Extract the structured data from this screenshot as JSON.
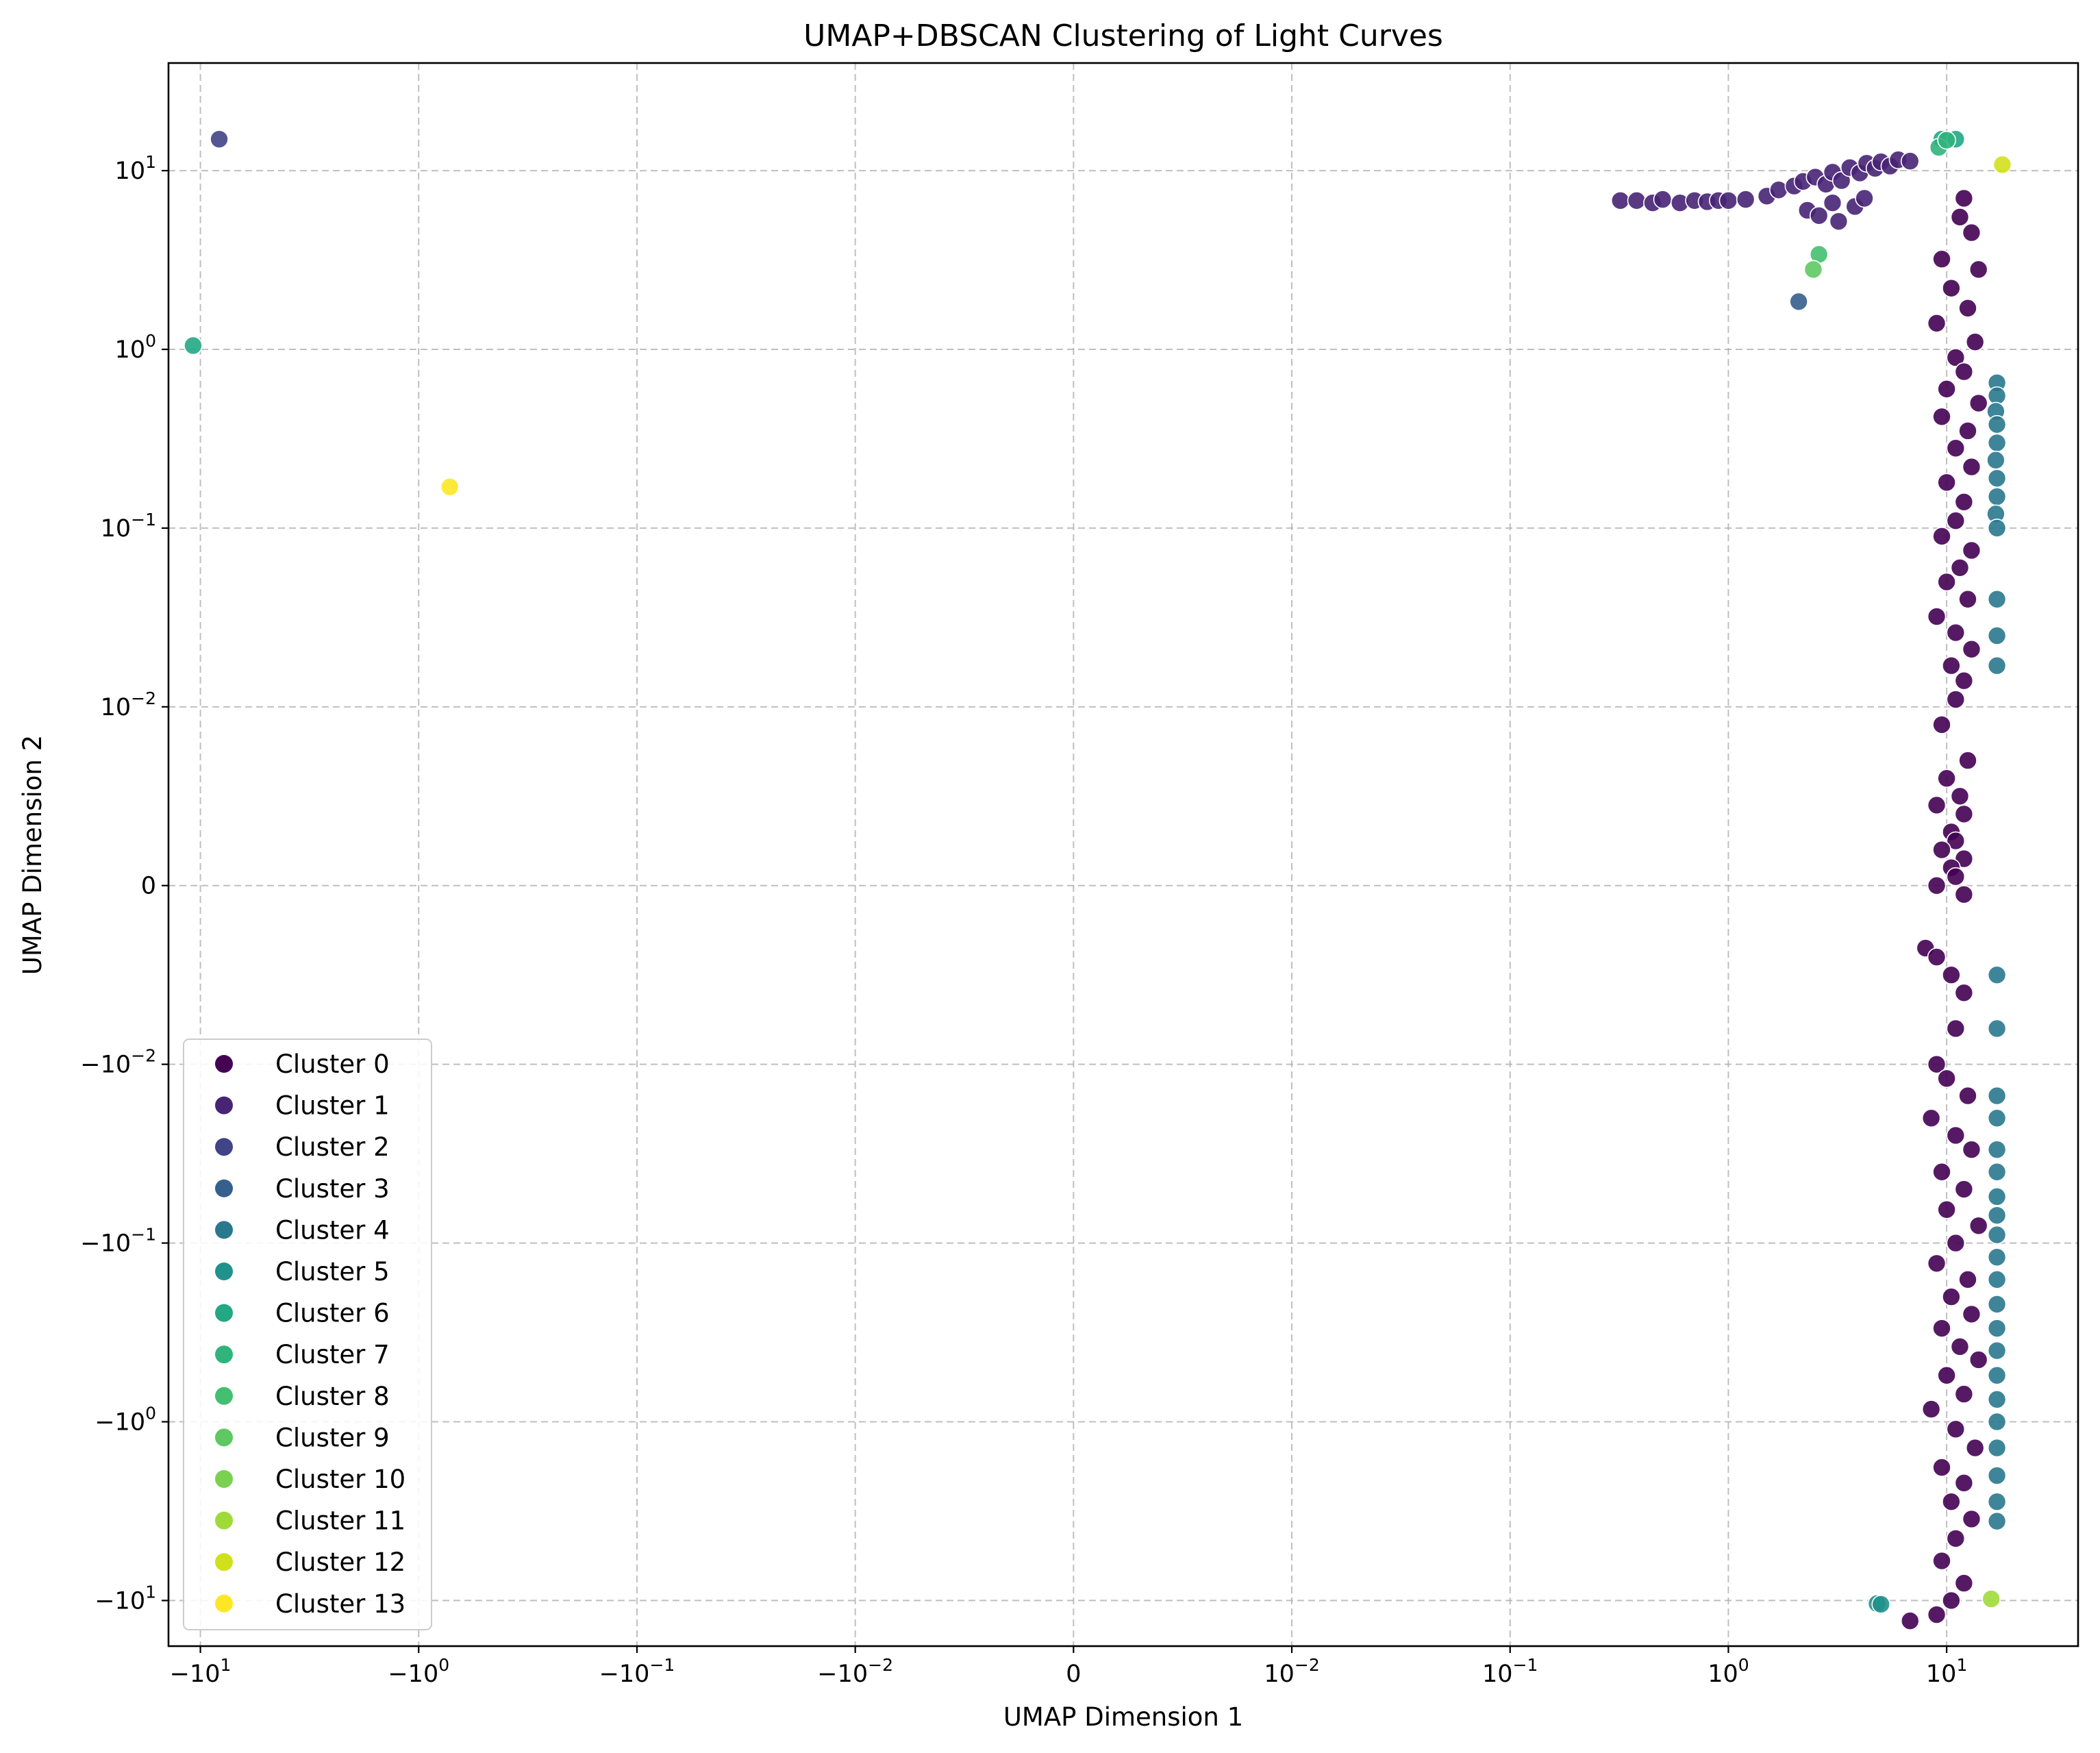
{
  "chart_data": {
    "type": "scatter",
    "title": "UMAP+DBSCAN Clustering of Light Curves",
    "xlabel": "UMAP Dimension 1",
    "ylabel": "UMAP Dimension 2",
    "xscale": "symlog",
    "yscale": "symlog",
    "linthresh": 0.01,
    "xlim": [
      -14,
      40
    ],
    "ylim": [
      -18,
      40
    ],
    "grid": true,
    "legend_position": "lower-left",
    "x_ticks": [
      {
        "value": -10,
        "base": "−10",
        "exp": "1"
      },
      {
        "value": -1,
        "base": "−10",
        "exp": "0"
      },
      {
        "value": -0.1,
        "base": "−10",
        "exp": "−1"
      },
      {
        "value": -0.01,
        "base": "−10",
        "exp": "−2"
      },
      {
        "value": 0,
        "base": "0",
        "exp": ""
      },
      {
        "value": 0.01,
        "base": "10",
        "exp": "−2"
      },
      {
        "value": 0.1,
        "base": "10",
        "exp": "−1"
      },
      {
        "value": 1,
        "base": "10",
        "exp": "0"
      },
      {
        "value": 10,
        "base": "10",
        "exp": "1"
      }
    ],
    "y_ticks": [
      {
        "value": 10,
        "base": "10",
        "exp": "1"
      },
      {
        "value": 1,
        "base": "10",
        "exp": "0"
      },
      {
        "value": 0.1,
        "base": "10",
        "exp": "−1"
      },
      {
        "value": 0.01,
        "base": "10",
        "exp": "−2"
      },
      {
        "value": 0,
        "base": "0",
        "exp": ""
      },
      {
        "value": -0.01,
        "base": "−10",
        "exp": "−2"
      },
      {
        "value": -0.1,
        "base": "−10",
        "exp": "−1"
      },
      {
        "value": -1,
        "base": "−10",
        "exp": "0"
      },
      {
        "value": -10,
        "base": "−10",
        "exp": "1"
      }
    ],
    "series": [
      {
        "name": "Cluster 0",
        "color": "#440154",
        "points": [
          [
            12,
            7
          ],
          [
            11.5,
            5.5
          ],
          [
            13,
            4.5
          ],
          [
            9.5,
            3.2
          ],
          [
            14,
            2.8
          ],
          [
            10.5,
            2.2
          ],
          [
            12.5,
            1.7
          ],
          [
            9,
            1.4
          ],
          [
            13.5,
            1.1
          ],
          [
            11,
            0.9
          ],
          [
            12,
            0.75
          ],
          [
            10,
            0.6
          ],
          [
            14,
            0.5
          ],
          [
            9.5,
            0.42
          ],
          [
            12.5,
            0.35
          ],
          [
            11,
            0.28
          ],
          [
            13,
            0.22
          ],
          [
            10,
            0.18
          ],
          [
            12,
            0.14
          ],
          [
            11,
            0.11
          ],
          [
            9.5,
            0.09
          ],
          [
            13,
            0.075
          ],
          [
            11.5,
            0.06
          ],
          [
            10,
            0.05
          ],
          [
            12.5,
            0.04
          ],
          [
            9,
            0.032
          ],
          [
            11,
            0.026
          ],
          [
            13,
            0.021
          ],
          [
            10.5,
            0.017
          ],
          [
            12,
            0.014
          ],
          [
            11,
            0.011
          ],
          [
            9.5,
            0.009
          ],
          [
            12.5,
            0.007
          ],
          [
            10,
            0.006
          ],
          [
            11.5,
            0.005
          ],
          [
            9,
            0.0045
          ],
          [
            12,
            0.004
          ],
          [
            10.5,
            0.003
          ],
          [
            11,
            0.0025
          ],
          [
            9.5,
            0.002
          ],
          [
            12,
            0.0015
          ],
          [
            10.5,
            0.001
          ],
          [
            11,
            0.0005
          ],
          [
            9,
            0
          ],
          [
            12,
            -0.0005
          ],
          [
            8,
            -0.0035
          ],
          [
            9,
            -0.004
          ],
          [
            10.5,
            -0.005
          ],
          [
            12,
            -0.006
          ],
          [
            11,
            -0.008
          ],
          [
            9,
            -0.01
          ],
          [
            10,
            -0.012
          ],
          [
            12.5,
            -0.015
          ],
          [
            8.5,
            -0.02
          ],
          [
            11,
            -0.025
          ],
          [
            13,
            -0.03
          ],
          [
            9.5,
            -0.04
          ],
          [
            12,
            -0.05
          ],
          [
            10,
            -0.065
          ],
          [
            14,
            -0.08
          ],
          [
            11,
            -0.1
          ],
          [
            9,
            -0.13
          ],
          [
            12.5,
            -0.16
          ],
          [
            10.5,
            -0.2
          ],
          [
            13,
            -0.25
          ],
          [
            9.5,
            -0.3
          ],
          [
            11.5,
            -0.38
          ],
          [
            14,
            -0.45
          ],
          [
            10,
            -0.55
          ],
          [
            12,
            -0.7
          ],
          [
            8.5,
            -0.85
          ],
          [
            11,
            -1.1
          ],
          [
            13.5,
            -1.4
          ],
          [
            9.5,
            -1.8
          ],
          [
            12,
            -2.2
          ],
          [
            10.5,
            -2.8
          ],
          [
            13,
            -3.5
          ],
          [
            11,
            -4.5
          ],
          [
            9.5,
            -6
          ],
          [
            12,
            -8
          ],
          [
            10.5,
            -10
          ],
          [
            9,
            -12
          ],
          [
            6.8,
            -13
          ]
        ]
      },
      {
        "name": "Cluster 1",
        "color": "#482475",
        "points": [
          [
            0.32,
            6.8
          ],
          [
            0.38,
            6.8
          ],
          [
            0.45,
            6.6
          ],
          [
            0.5,
            6.9
          ],
          [
            0.6,
            6.6
          ],
          [
            0.7,
            6.8
          ],
          [
            0.8,
            6.7
          ],
          [
            0.9,
            6.8
          ],
          [
            1,
            6.8
          ],
          [
            1.2,
            6.9
          ],
          [
            1.5,
            7.2
          ],
          [
            1.7,
            7.8
          ],
          [
            2,
            8.2
          ],
          [
            2.2,
            8.7
          ],
          [
            2.5,
            9.2
          ],
          [
            2.8,
            8.4
          ],
          [
            3,
            9.8
          ],
          [
            3.3,
            8.8
          ],
          [
            3.6,
            10.4
          ],
          [
            4,
            9.7
          ],
          [
            4.3,
            11
          ],
          [
            4.7,
            10.3
          ],
          [
            5,
            11.2
          ],
          [
            5.5,
            10.6
          ],
          [
            6,
            11.5
          ],
          [
            6.8,
            11.3
          ],
          [
            2.3,
            6
          ],
          [
            2.6,
            5.6
          ],
          [
            3.2,
            5.2
          ],
          [
            3.8,
            6.3
          ],
          [
            4.2,
            7
          ],
          [
            3,
            6.6
          ]
        ]
      },
      {
        "name": "Cluster 2",
        "color": "#414487",
        "points": [
          [
            -8.2,
            15
          ]
        ]
      },
      {
        "name": "Cluster 3",
        "color": "#355f8d",
        "points": [
          [
            2.1,
            1.85
          ]
        ]
      },
      {
        "name": "Cluster 4",
        "color": "#2a788e",
        "points": [
          [
            17,
            0.65
          ],
          [
            17,
            0.55
          ],
          [
            16.8,
            0.45
          ],
          [
            17,
            0.38
          ],
          [
            17,
            0.3
          ],
          [
            16.8,
            0.24
          ],
          [
            17,
            0.19
          ],
          [
            17,
            0.15
          ],
          [
            16.8,
            0.12
          ],
          [
            17,
            0.1
          ],
          [
            17,
            0.04
          ],
          [
            17,
            0.025
          ],
          [
            17,
            0.017
          ],
          [
            17,
            -0.005
          ],
          [
            17,
            -0.008
          ],
          [
            17,
            -0.015
          ],
          [
            17,
            -0.02
          ],
          [
            17,
            -0.03
          ],
          [
            17,
            -0.04
          ],
          [
            17,
            -0.055
          ],
          [
            17,
            -0.07
          ],
          [
            17,
            -0.09
          ],
          [
            17,
            -0.12
          ],
          [
            17,
            -0.16
          ],
          [
            17,
            -0.22
          ],
          [
            17,
            -0.3
          ],
          [
            17,
            -0.4
          ],
          [
            17,
            -0.55
          ],
          [
            17,
            -0.75
          ],
          [
            17,
            -1
          ],
          [
            17,
            -1.4
          ],
          [
            17,
            -2
          ],
          [
            17,
            -2.8
          ],
          [
            17,
            -3.6
          ]
        ]
      },
      {
        "name": "Cluster 5",
        "color": "#21918c",
        "points": [
          [
            4.8,
            -10.4
          ],
          [
            5,
            -10.5
          ]
        ]
      },
      {
        "name": "Cluster 6",
        "color": "#22a884",
        "points": [
          [
            -10.8,
            1.05
          ],
          [
            9.5,
            15
          ],
          [
            11,
            15
          ]
        ]
      },
      {
        "name": "Cluster 7",
        "color": "#2fb47c",
        "points": [
          [
            9.2,
            13.5
          ],
          [
            10,
            14.8
          ]
        ]
      },
      {
        "name": "Cluster 8",
        "color": "#44bf70",
        "points": [
          [
            2.6,
            3.4
          ]
        ]
      },
      {
        "name": "Cluster 9",
        "color": "#5ec962",
        "points": [
          [
            2.45,
            2.8
          ]
        ]
      },
      {
        "name": "Cluster 10",
        "color": "#7ad151",
        "points": []
      },
      {
        "name": "Cluster 11",
        "color": "#a0da39",
        "points": [
          [
            16,
            -9.8
          ]
        ]
      },
      {
        "name": "Cluster 12",
        "color": "#d0e11c",
        "points": [
          [
            18,
            10.8
          ]
        ]
      },
      {
        "name": "Cluster 13",
        "color": "#fde725",
        "points": [
          [
            -0.72,
            0.17
          ]
        ]
      }
    ]
  }
}
